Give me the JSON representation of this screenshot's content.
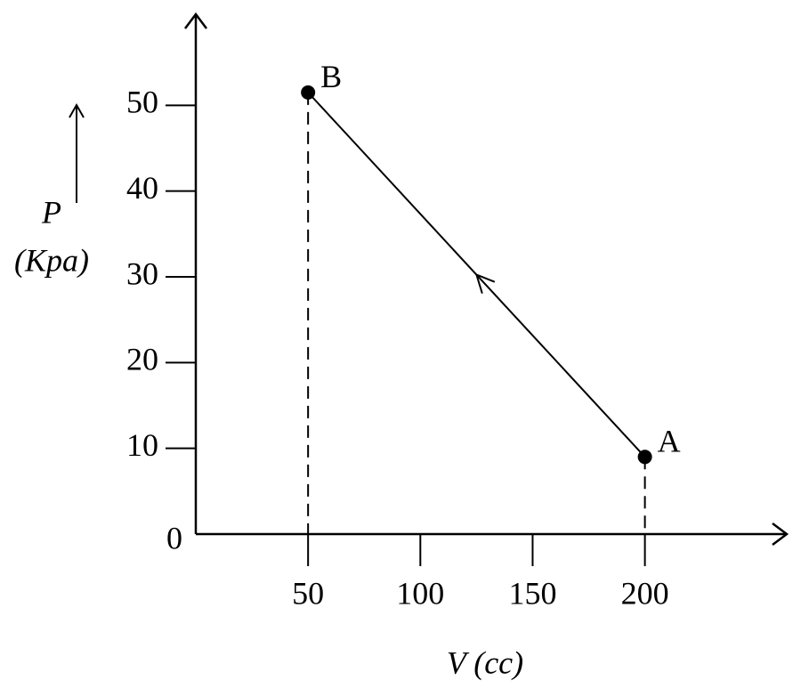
{
  "chart_data": {
    "type": "line",
    "ylabel": "P",
    "ylabel_unit": "(Kpa)",
    "xlabel": "V (cc)",
    "x": [
      200,
      50
    ],
    "series": [
      {
        "color": "#000000",
        "values": [
          9,
          51.5
        ]
      }
    ],
    "point_labels": [
      "A",
      "B"
    ],
    "xlim": [
      0,
      260
    ],
    "ylim": [
      0,
      60
    ],
    "xticks": [
      50,
      100,
      150,
      200
    ],
    "yticks": [
      0,
      10,
      20,
      30,
      40,
      50
    ]
  }
}
